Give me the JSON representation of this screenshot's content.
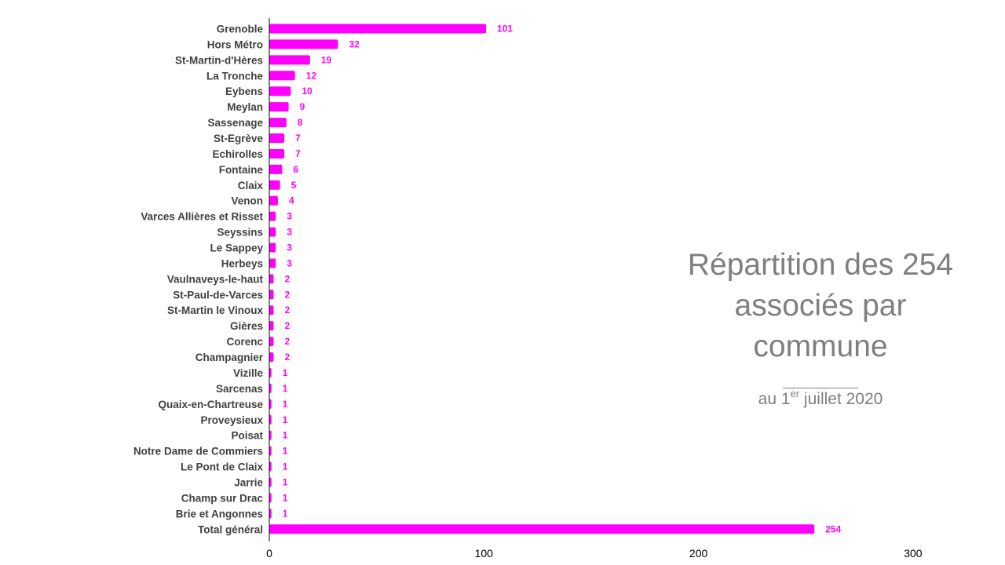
{
  "chart_data": {
    "type": "bar",
    "orientation": "horizontal",
    "categories": [
      "Grenoble",
      "Hors Métro",
      "St-Martin-d'Hères",
      "La Tronche",
      "Eybens",
      "Meylan",
      "Sassenage",
      "St-Egrève",
      "Echirolles",
      "Fontaine",
      "Claix",
      "Venon",
      "Varces Allières et Risset",
      "Seyssins",
      "Le Sappey",
      "Herbeys",
      "Vaulnaveys-le-haut",
      "St-Paul-de-Varces",
      "St-Martin le Vinoux",
      "Gières",
      "Corenc",
      "Champagnier",
      "Vizille",
      "Sarcenas",
      "Quaix-en-Chartreuse",
      "Proveysieux",
      "Poisat",
      "Notre Dame de Commiers",
      "Le Pont de Claix",
      "Jarrie",
      "Champ sur Drac",
      "Brie et Angonnes",
      "Total général"
    ],
    "values": [
      101,
      32,
      19,
      12,
      10,
      9,
      8,
      7,
      7,
      6,
      5,
      4,
      3,
      3,
      3,
      3,
      2,
      2,
      2,
      2,
      2,
      2,
      1,
      1,
      1,
      1,
      1,
      1,
      1,
      1,
      1,
      1,
      254
    ],
    "x_ticks": [
      0,
      100,
      200,
      300
    ],
    "xlim": [
      0,
      300
    ],
    "grid": false,
    "legend": "none",
    "data_labels": true,
    "title": "Répartition des 254 associés par commune",
    "subtitle": {
      "prefix": "au 1",
      "superscript": "er",
      "suffix": " juillet 2020"
    },
    "colors": {
      "bar": "#ff00ff",
      "value_label": "#ff00ff",
      "category_label": "#404040",
      "axis": "#000000",
      "title": "#7f7f7f"
    }
  }
}
